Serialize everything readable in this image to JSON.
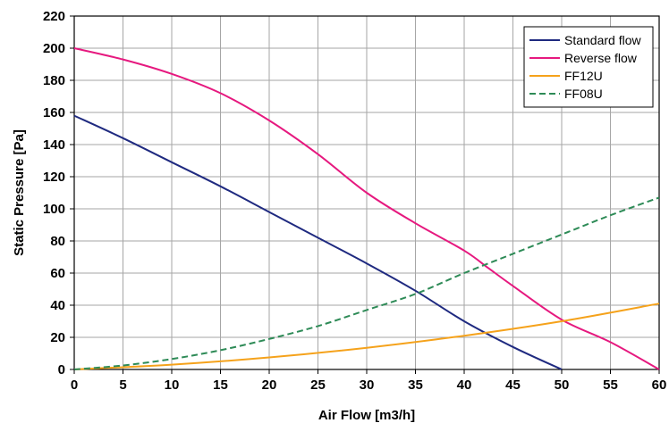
{
  "chart_data": {
    "type": "line",
    "xlabel": "Air Flow [m3/h]",
    "ylabel": "Static Pressure [Pa]",
    "xlim": [
      0,
      60
    ],
    "ylim": [
      0,
      220
    ],
    "xticks": [
      0,
      5,
      10,
      15,
      20,
      25,
      30,
      35,
      40,
      45,
      50,
      55,
      60
    ],
    "yticks": [
      0,
      20,
      40,
      60,
      80,
      100,
      120,
      140,
      160,
      180,
      200,
      220
    ],
    "grid": true,
    "legend_position": "top-right",
    "series": [
      {
        "name": "Standard flow",
        "color": "#1f2a80",
        "dash": "solid",
        "x": [
          0,
          5,
          10,
          15,
          20,
          25,
          30,
          35,
          40,
          45,
          50
        ],
        "y": [
          158,
          144,
          129,
          114,
          98,
          82,
          66,
          49,
          30,
          14,
          0
        ]
      },
      {
        "name": "Reverse flow",
        "color": "#e6197f",
        "dash": "solid",
        "x": [
          0,
          5,
          10,
          15,
          20,
          25,
          30,
          35,
          40,
          42.5,
          45,
          50,
          55,
          60
        ],
        "y": [
          200,
          193,
          184,
          172,
          155,
          134,
          110,
          91,
          74,
          63,
          52,
          31,
          17,
          0
        ]
      },
      {
        "name": "FF12U",
        "color": "#f5a21b",
        "dash": "solid",
        "x": [
          0,
          10,
          20,
          30,
          40,
          50,
          60
        ],
        "y": [
          0,
          3,
          7.5,
          13.5,
          21,
          30,
          41
        ]
      },
      {
        "name": "FF08U",
        "color": "#2e8b57",
        "dash": "dashed",
        "x": [
          0,
          5,
          10,
          15,
          20,
          25,
          30,
          35,
          40,
          45,
          50,
          55,
          60
        ],
        "y": [
          0,
          2.5,
          6.5,
          12,
          19,
          27,
          37,
          47,
          60,
          72,
          84,
          96,
          107
        ]
      }
    ]
  }
}
